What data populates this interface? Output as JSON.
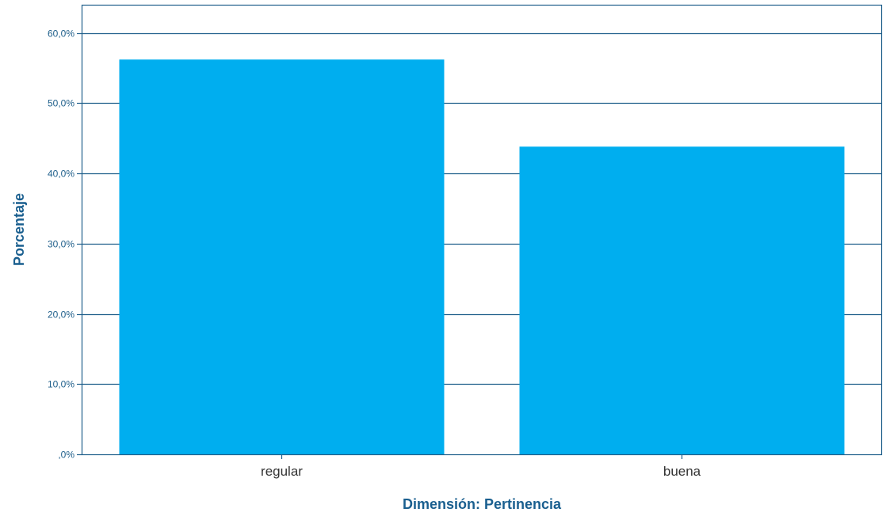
{
  "chart_data": {
    "type": "bar",
    "title": "",
    "xlabel": "Dimensión: Pertinencia",
    "ylabel": "Porcentaje",
    "categories": [
      "regular",
      "buena"
    ],
    "values": [
      56.2,
      43.8
    ],
    "ylim": [
      0,
      64
    ],
    "yticks": [
      0,
      10,
      20,
      30,
      40,
      50,
      60
    ],
    "ytick_labels": [
      ",0%",
      "10,0%",
      "20,0%",
      "30,0%",
      "40,0%",
      "50,0%",
      "60,0%"
    ],
    "grid": true,
    "legend": "none",
    "colors": {
      "bar": "#00AEEF",
      "axis": "#1F5F8B",
      "grid": "#1F5F8B",
      "text": "#1F5F8B",
      "label": "#1A5F8F"
    }
  }
}
